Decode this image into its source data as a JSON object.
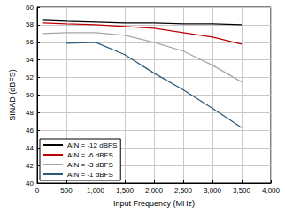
{
  "chart_data": {
    "type": "line",
    "x_label": "Input Frequency (MHz)",
    "y_label": "SINAD (dBFS)",
    "x": [
      100,
      500,
      1000,
      1500,
      2000,
      2500,
      3000,
      3500
    ],
    "series": [
      {
        "name": "AIN = -12 dBFS",
        "color": "#000000",
        "values": [
          58.5,
          58.4,
          58.3,
          58.2,
          58.2,
          58.1,
          58.1,
          58.0
        ]
      },
      {
        "name": "AIN = -6 dBFS",
        "color": "#c00000",
        "values": [
          58.2,
          58.1,
          58.0,
          57.8,
          57.6,
          57.1,
          56.6,
          55.8
        ]
      },
      {
        "name": "AIN = -3 dBFS",
        "color": "#a6a6a6",
        "values": [
          57.0,
          57.1,
          57.1,
          56.8,
          56.0,
          55.0,
          53.4,
          51.5
        ]
      },
      {
        "name": "AIN = -1 dBFS",
        "color": "#2e5a78",
        "values": [
          null,
          55.9,
          56.0,
          54.6,
          52.5,
          50.6,
          48.5,
          46.3
        ]
      }
    ],
    "xlim": [
      0,
      4000
    ],
    "xticks": [
      0,
      500,
      1000,
      1500,
      2000,
      2500,
      3000,
      3500,
      4000
    ],
    "ylim": [
      40,
      60
    ],
    "yticks": [
      40,
      42,
      44,
      46,
      48,
      50,
      52,
      54,
      56,
      58,
      60
    ],
    "grid": true,
    "legend": "lower left"
  }
}
